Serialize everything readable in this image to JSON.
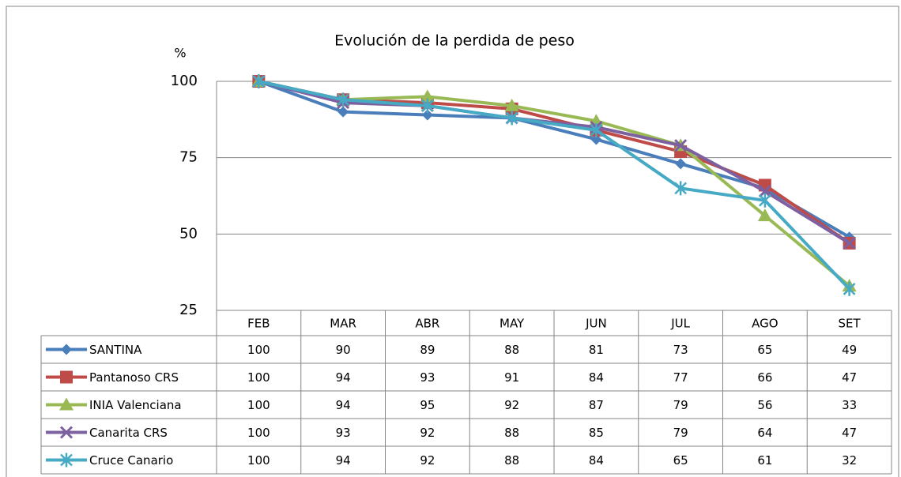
{
  "chart_data": {
    "type": "line",
    "title": "Evolución de la perdida de peso",
    "y_label": "%",
    "categories": [
      "FEB",
      "MAR",
      "ABR",
      "MAY",
      "JUN",
      "JUL",
      "AGO",
      "SET"
    ],
    "ylim": [
      25,
      100
    ],
    "yticks": [
      25,
      50,
      75,
      100
    ],
    "grid": true,
    "series": [
      {
        "name": "SANTINA",
        "color": "#4a7ebb",
        "marker": "diamond",
        "values": [
          100,
          90,
          89,
          88,
          81,
          73,
          65,
          49
        ]
      },
      {
        "name": "Pantanoso CRS",
        "color": "#be4b48",
        "marker": "square",
        "values": [
          100,
          94,
          93,
          91,
          84,
          77,
          66,
          47
        ]
      },
      {
        "name": "INIA Valenciana",
        "color": "#98b954",
        "marker": "triangle",
        "values": [
          100,
          94,
          95,
          92,
          87,
          79,
          56,
          33
        ]
      },
      {
        "name": "Canarita CRS",
        "color": "#7d60a0",
        "marker": "x",
        "values": [
          100,
          93,
          92,
          88,
          85,
          79,
          64,
          47
        ]
      },
      {
        "name": "Cruce Canario",
        "color": "#46aac5",
        "marker": "star",
        "values": [
          100,
          94,
          92,
          88,
          84,
          65,
          61,
          32
        ]
      }
    ]
  }
}
